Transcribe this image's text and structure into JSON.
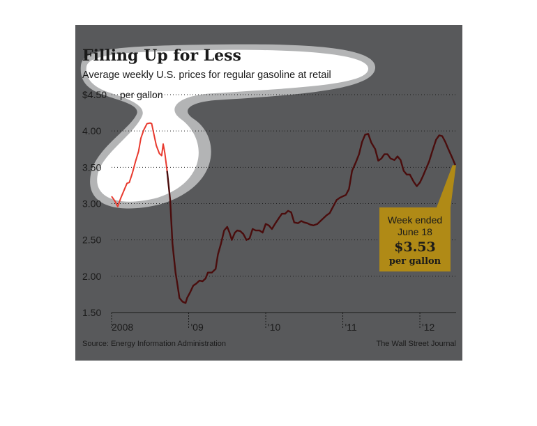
{
  "chart_data": {
    "type": "line",
    "title": "Filling Up for Less",
    "subtitle": "Average weekly U.S. prices for regular gasoline at retail",
    "y_unit_label": "per gallon",
    "ylim": [
      1.5,
      4.5
    ],
    "y_ticks": [
      {
        "value": 4.5,
        "label": "$4.50"
      },
      {
        "value": 4.0,
        "label": "4.00"
      },
      {
        "value": 3.5,
        "label": "3.50"
      },
      {
        "value": 3.0,
        "label": "3.00"
      },
      {
        "value": 2.5,
        "label": "2.50"
      },
      {
        "value": 2.0,
        "label": "2.00"
      },
      {
        "value": 1.5,
        "label": "1.50"
      }
    ],
    "xlim": [
      2008.0,
      2012.47
    ],
    "x_ticks": [
      {
        "value": 2008,
        "label": "2008"
      },
      {
        "value": 2009,
        "label": "'09"
      },
      {
        "value": 2010,
        "label": "'10"
      },
      {
        "value": 2011,
        "label": "'11"
      },
      {
        "value": 2012,
        "label": "'12"
      }
    ],
    "grid": "dotted horizontal",
    "highlight_until": 2008.72,
    "highlight_color": "#e8392e",
    "line_color": "#4a0d0d",
    "series": [
      {
        "points": [
          [
            2008.0,
            3.1
          ],
          [
            2008.04,
            3.04
          ],
          [
            2008.08,
            2.96
          ],
          [
            2008.12,
            3.08
          ],
          [
            2008.16,
            3.18
          ],
          [
            2008.2,
            3.28
          ],
          [
            2008.23,
            3.29
          ],
          [
            2008.27,
            3.42
          ],
          [
            2008.31,
            3.58
          ],
          [
            2008.35,
            3.72
          ],
          [
            2008.38,
            3.9
          ],
          [
            2008.42,
            4.02
          ],
          [
            2008.46,
            4.1
          ],
          [
            2008.5,
            4.11
          ],
          [
            2008.52,
            4.1
          ],
          [
            2008.55,
            3.95
          ],
          [
            2008.58,
            3.8
          ],
          [
            2008.62,
            3.69
          ],
          [
            2008.65,
            3.66
          ],
          [
            2008.67,
            3.82
          ],
          [
            2008.69,
            3.7
          ],
          [
            2008.72,
            3.45
          ],
          [
            2008.76,
            3.05
          ],
          [
            2008.79,
            2.45
          ],
          [
            2008.83,
            2.05
          ],
          [
            2008.86,
            1.85
          ],
          [
            2008.88,
            1.7
          ],
          [
            2008.92,
            1.65
          ],
          [
            2008.96,
            1.63
          ],
          [
            2008.98,
            1.7
          ],
          [
            2009.02,
            1.78
          ],
          [
            2009.06,
            1.87
          ],
          [
            2009.1,
            1.9
          ],
          [
            2009.14,
            1.94
          ],
          [
            2009.18,
            1.93
          ],
          [
            2009.22,
            1.97
          ],
          [
            2009.25,
            2.05
          ],
          [
            2009.3,
            2.05
          ],
          [
            2009.35,
            2.1
          ],
          [
            2009.38,
            2.3
          ],
          [
            2009.42,
            2.45
          ],
          [
            2009.46,
            2.63
          ],
          [
            2009.5,
            2.68
          ],
          [
            2009.53,
            2.6
          ],
          [
            2009.56,
            2.5
          ],
          [
            2009.6,
            2.6
          ],
          [
            2009.63,
            2.63
          ],
          [
            2009.67,
            2.62
          ],
          [
            2009.71,
            2.58
          ],
          [
            2009.75,
            2.5
          ],
          [
            2009.79,
            2.52
          ],
          [
            2009.83,
            2.65
          ],
          [
            2009.87,
            2.63
          ],
          [
            2009.92,
            2.63
          ],
          [
            2009.96,
            2.6
          ],
          [
            2010.0,
            2.72
          ],
          [
            2010.04,
            2.7
          ],
          [
            2010.08,
            2.65
          ],
          [
            2010.12,
            2.72
          ],
          [
            2010.17,
            2.8
          ],
          [
            2010.21,
            2.86
          ],
          [
            2010.25,
            2.86
          ],
          [
            2010.29,
            2.9
          ],
          [
            2010.33,
            2.88
          ],
          [
            2010.37,
            2.74
          ],
          [
            2010.42,
            2.73
          ],
          [
            2010.46,
            2.76
          ],
          [
            2010.5,
            2.74
          ],
          [
            2010.54,
            2.73
          ],
          [
            2010.58,
            2.71
          ],
          [
            2010.62,
            2.7
          ],
          [
            2010.67,
            2.72
          ],
          [
            2010.71,
            2.76
          ],
          [
            2010.75,
            2.8
          ],
          [
            2010.79,
            2.84
          ],
          [
            2010.83,
            2.87
          ],
          [
            2010.87,
            2.95
          ],
          [
            2010.92,
            3.05
          ],
          [
            2010.96,
            3.08
          ],
          [
            2011.0,
            3.1
          ],
          [
            2011.04,
            3.12
          ],
          [
            2011.08,
            3.2
          ],
          [
            2011.12,
            3.45
          ],
          [
            2011.17,
            3.57
          ],
          [
            2011.21,
            3.68
          ],
          [
            2011.25,
            3.85
          ],
          [
            2011.29,
            3.95
          ],
          [
            2011.33,
            3.96
          ],
          [
            2011.37,
            3.84
          ],
          [
            2011.42,
            3.75
          ],
          [
            2011.46,
            3.59
          ],
          [
            2011.5,
            3.62
          ],
          [
            2011.54,
            3.68
          ],
          [
            2011.58,
            3.68
          ],
          [
            2011.62,
            3.62
          ],
          [
            2011.67,
            3.6
          ],
          [
            2011.71,
            3.65
          ],
          [
            2011.75,
            3.6
          ],
          [
            2011.79,
            3.45
          ],
          [
            2011.83,
            3.4
          ],
          [
            2011.87,
            3.4
          ],
          [
            2011.92,
            3.3
          ],
          [
            2011.96,
            3.24
          ],
          [
            2012.0,
            3.29
          ],
          [
            2012.04,
            3.38
          ],
          [
            2012.08,
            3.48
          ],
          [
            2012.12,
            3.58
          ],
          [
            2012.17,
            3.75
          ],
          [
            2012.21,
            3.88
          ],
          [
            2012.25,
            3.94
          ],
          [
            2012.29,
            3.93
          ],
          [
            2012.33,
            3.85
          ],
          [
            2012.37,
            3.75
          ],
          [
            2012.42,
            3.63
          ],
          [
            2012.46,
            3.53
          ]
        ]
      }
    ],
    "callout": {
      "line1": "Week ended",
      "line2": "June 18",
      "value": "$3.53",
      "unit": "per gallon",
      "color": "#b08a16"
    },
    "source": "Source: Energy Information Administration",
    "credit": "The Wall Street Journal"
  }
}
